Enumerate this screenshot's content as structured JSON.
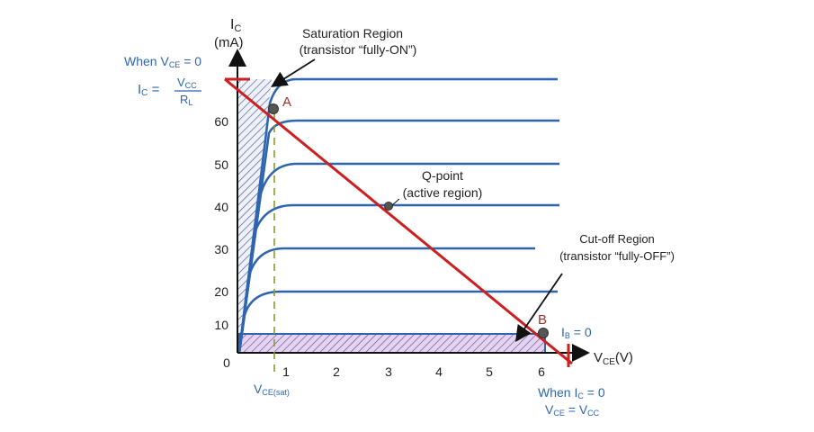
{
  "axes": {
    "y_label_line1": "I",
    "y_label_sub": "C",
    "y_label_line2": "(mA)",
    "x_label": "V",
    "x_label_sub": "CE",
    "x_label_unit": "(V)",
    "x_ticks": [
      "0",
      "1",
      "2",
      "3",
      "4",
      "5",
      "6"
    ],
    "y_ticks": [
      "10",
      "20",
      "30",
      "40",
      "50",
      "60"
    ]
  },
  "annotations": {
    "saturation_line1": "Saturation Region",
    "saturation_line2": "(transistor “fully-ON”)",
    "qpoint_line1": "Q-point",
    "qpoint_line2": "(active region)",
    "cutoff_line1": "Cut-off Region",
    "cutoff_line2": "(transistor “fully-OFF”)",
    "point_a": "A",
    "point_b": "B",
    "ib_label": "I",
    "ib_sub": "B",
    "ib_value": " = 0",
    "vce_sat": "V",
    "vce_sat_sub": "CE(sat)"
  },
  "left_condition": {
    "line1_prefix": "When V",
    "line1_sub": "CE",
    "line1_suffix": " = 0",
    "ic": "I",
    "ic_sub": "C",
    "equals": " =",
    "numerator": "V",
    "numerator_sub": "CC",
    "denominator": "R",
    "denominator_sub": "L"
  },
  "bottom_condition": {
    "line1_prefix": "When I",
    "line1_sub": "C",
    "line1_suffix": " = 0",
    "line2_prefix": "V",
    "line2_sub": "CE",
    "line2_mid": " = V",
    "line2_sub2": "CC"
  },
  "colors": {
    "curves": "#2f65b0",
    "load_line": "#cc1f1f",
    "saturation_fill": "#b8c4e0",
    "cutoff_fill": "#d8c4ec",
    "dashed": "#8a9a2a"
  }
}
